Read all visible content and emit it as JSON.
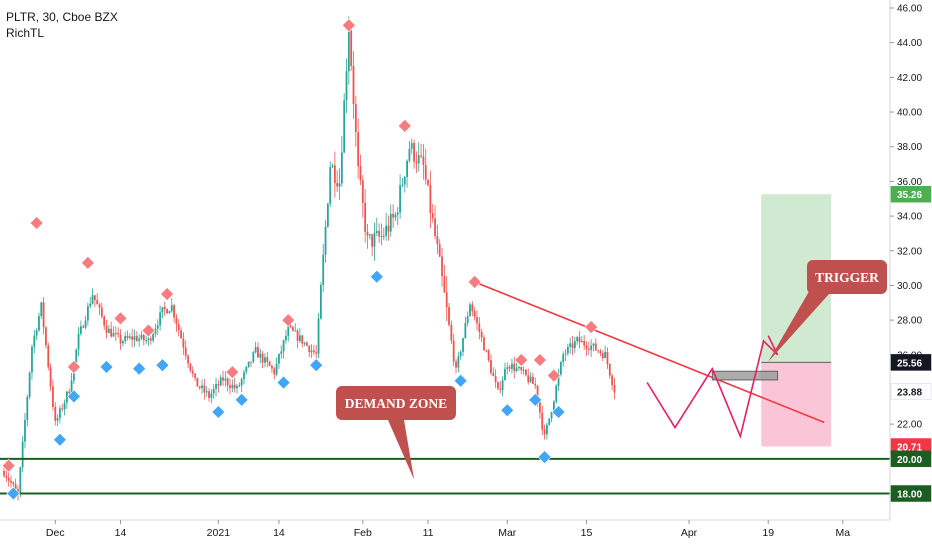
{
  "header": {
    "symbol_line": "PLTR, 30, Cboe BZX",
    "indicator": "RichTL"
  },
  "colors": {
    "up": "#26a69a",
    "down": "#ef5350",
    "trendline": "#f23645",
    "zone_line": "#1b5e20",
    "marker_top": "#f77c80",
    "marker_bottom": "#42a5f5",
    "projection": "#e91e63",
    "callout": "#c0504d",
    "target_fill": "#c8e6c9",
    "stop_fill": "#f8bbd0"
  },
  "chart_data": {
    "type": "candlestick",
    "title": "PLTR, 30, Cboe BZX",
    "ylim": [
      17,
      46.5
    ],
    "y_ticks": [
      "46.00",
      "44.00",
      "42.00",
      "40.00",
      "38.00",
      "36.00",
      "34.00",
      "32.00",
      "30.00",
      "28.00",
      "26.00",
      "22.00"
    ],
    "x_ticks": [
      "Dec",
      "14",
      "2021",
      "14",
      "Feb",
      "11",
      "Mar",
      "15",
      "Apr",
      "19",
      "Ma"
    ],
    "x_tick_bars": [
      11,
      25,
      46,
      59,
      77,
      91,
      108,
      125,
      147,
      164,
      180
    ],
    "n_bars": 185,
    "close_path": [
      [
        0,
        19.3
      ],
      [
        3,
        17.9
      ],
      [
        6,
        26.5
      ],
      [
        8,
        28.8
      ],
      [
        11,
        22.0
      ],
      [
        14,
        24.0
      ],
      [
        16,
        27.0
      ],
      [
        19,
        29.5
      ],
      [
        22,
        27.5
      ],
      [
        25,
        26.8
      ],
      [
        28,
        27.0
      ],
      [
        31,
        26.8
      ],
      [
        34,
        28.5
      ],
      [
        36,
        28.8
      ],
      [
        38,
        27.0
      ],
      [
        41,
        24.4
      ],
      [
        44,
        23.6
      ],
      [
        47,
        24.6
      ],
      [
        50,
        24.0
      ],
      [
        54,
        26.2
      ],
      [
        58,
        25.0
      ],
      [
        61,
        27.5
      ],
      [
        64,
        26.8
      ],
      [
        67,
        26.0
      ],
      [
        70,
        37.0
      ],
      [
        72,
        36.0
      ],
      [
        74,
        45.0
      ],
      [
        76,
        36.5
      ],
      [
        78,
        32.5
      ],
      [
        81,
        32.8
      ],
      [
        84,
        34.0
      ],
      [
        87,
        38.0
      ],
      [
        90,
        36.8
      ],
      [
        93,
        32.0
      ],
      [
        95,
        28.5
      ],
      [
        97,
        25.0
      ],
      [
        100,
        29.0
      ],
      [
        103,
        26.5
      ],
      [
        106,
        23.8
      ],
      [
        108,
        25.5
      ],
      [
        111,
        25.0
      ],
      [
        114,
        24.2
      ],
      [
        116,
        21.2
      ],
      [
        118,
        23.5
      ],
      [
        120,
        26.0
      ],
      [
        123,
        26.8
      ],
      [
        126,
        26.5
      ],
      [
        129,
        26.0
      ],
      [
        131,
        24.0
      ]
    ],
    "top_markers": [
      {
        "x": 1,
        "y": 19.6
      },
      {
        "x": 7,
        "y": 33.6
      },
      {
        "x": 15,
        "y": 25.3
      },
      {
        "x": 18,
        "y": 31.3
      },
      {
        "x": 25,
        "y": 28.1
      },
      {
        "x": 31,
        "y": 27.4
      },
      {
        "x": 35,
        "y": 29.5
      },
      {
        "x": 49,
        "y": 25.0
      },
      {
        "x": 61,
        "y": 28.0
      },
      {
        "x": 74,
        "y": 45.0
      },
      {
        "x": 86,
        "y": 39.2
      },
      {
        "x": 101,
        "y": 30.2
      },
      {
        "x": 111,
        "y": 25.7
      },
      {
        "x": 115,
        "y": 25.7
      },
      {
        "x": 118,
        "y": 24.8
      },
      {
        "x": 126,
        "y": 27.6
      }
    ],
    "bottom_markers": [
      {
        "x": 2,
        "y": 18.0
      },
      {
        "x": 12,
        "y": 21.1
      },
      {
        "x": 15,
        "y": 23.6
      },
      {
        "x": 22,
        "y": 25.3
      },
      {
        "x": 29,
        "y": 25.2
      },
      {
        "x": 34,
        "y": 25.4
      },
      {
        "x": 46,
        "y": 22.7
      },
      {
        "x": 51,
        "y": 23.4
      },
      {
        "x": 60,
        "y": 24.4
      },
      {
        "x": 67,
        "y": 25.4
      },
      {
        "x": 80,
        "y": 30.5
      },
      {
        "x": 98,
        "y": 24.5
      },
      {
        "x": 108,
        "y": 22.8
      },
      {
        "x": 114,
        "y": 23.4
      },
      {
        "x": 116,
        "y": 20.1
      },
      {
        "x": 119,
        "y": 22.7
      }
    ],
    "trendline": [
      [
        101,
        30.2
      ],
      [
        176,
        22.1
      ]
    ],
    "demand_lines": [
      20.0,
      18.0
    ],
    "projection_path": [
      [
        138,
        24.4
      ],
      [
        144,
        21.8
      ],
      [
        152,
        25.2
      ],
      [
        158,
        21.3
      ],
      [
        163,
        26.8
      ],
      [
        166,
        26.0
      ],
      [
        164,
        27.1
      ]
    ],
    "target_box": {
      "x0": 162.5,
      "x1": 177.5,
      "y0": 25.56,
      "y1": 35.26
    },
    "stop_box": {
      "x0": 162.5,
      "x1": 177.5,
      "y0": 20.71,
      "y1": 25.56
    },
    "entry_box": {
      "x0": 152,
      "x1": 166,
      "y0": 24.55,
      "y1": 25.05
    },
    "price_labels": [
      {
        "value": 35.26,
        "text": "35.26",
        "bg": "#4caf50",
        "fg": "#ffffff"
      },
      {
        "value": 25.56,
        "text": "25.56",
        "bg": "#131722",
        "fg": "#ffffff"
      },
      {
        "value": 23.88,
        "text": "23.88",
        "bg": "#ffffff",
        "fg": "#131722"
      },
      {
        "value": 20.71,
        "text": "20.71",
        "bg": "#f23645",
        "fg": "#ffffff"
      },
      {
        "value": 20.0,
        "text": "20.00",
        "bg": "#1b5e20",
        "fg": "#ffffff"
      },
      {
        "value": 18.0,
        "text": "18.00",
        "bg": "#1b5e20",
        "fg": "#ffffff"
      }
    ],
    "annotations": [
      {
        "text": "DEMAND ZONE",
        "anchor_bar": 88,
        "anchor_y": 18.8,
        "box_x": 336,
        "box_y": 386,
        "box_w": 120,
        "box_h": 34
      },
      {
        "text": "TRIGGER",
        "anchor_bar": 164,
        "anchor_y": 25.6,
        "box_x": 807,
        "box_y": 260,
        "box_w": 80,
        "box_h": 34
      }
    ]
  }
}
